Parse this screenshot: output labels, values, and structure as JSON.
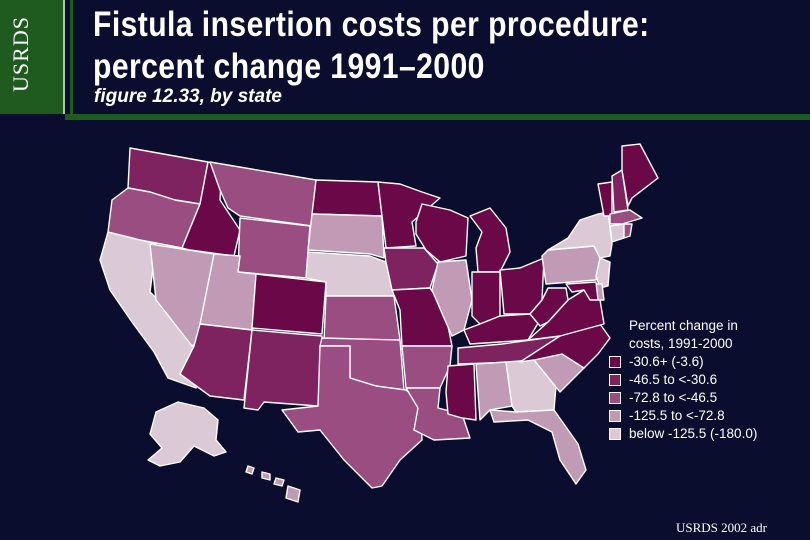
{
  "brand": {
    "label": "USRDS"
  },
  "header": {
    "title_line1": "Fistula insertion costs per procedure:",
    "title_line2": "percent change 1991–2000",
    "subtitle": "figure 12.33, by state"
  },
  "legend": {
    "title_line1": "Percent change in",
    "title_line2": "costs, 1991-2000",
    "classes": [
      {
        "label": "-30.6+ (-3.6)",
        "color": "#6b0848"
      },
      {
        "label": "-46.5 to <-30.6",
        "color": "#7e2260"
      },
      {
        "label": "-72.8 to <-46.5",
        "color": "#9a4d80"
      },
      {
        "label": "-125.5 to <-72.8",
        "color": "#c19ab5"
      },
      {
        "label": "below -125.5 (-180.0)",
        "color": "#dcc9d6"
      }
    ]
  },
  "map": {
    "states": [
      {
        "name": "WA",
        "class": 1
      },
      {
        "name": "OR",
        "class": 2
      },
      {
        "name": "CA",
        "class": 4
      },
      {
        "name": "ID",
        "class": 0
      },
      {
        "name": "NV",
        "class": 3
      },
      {
        "name": "MT",
        "class": 2
      },
      {
        "name": "WY",
        "class": 2
      },
      {
        "name": "UT",
        "class": 3
      },
      {
        "name": "AZ",
        "class": 1
      },
      {
        "name": "CO",
        "class": 0
      },
      {
        "name": "NM",
        "class": 1
      },
      {
        "name": "ND",
        "class": 0
      },
      {
        "name": "SD",
        "class": 3
      },
      {
        "name": "NE",
        "class": 4
      },
      {
        "name": "KS",
        "class": 2
      },
      {
        "name": "OK",
        "class": 2
      },
      {
        "name": "TX",
        "class": 2
      },
      {
        "name": "MN",
        "class": 0
      },
      {
        "name": "IA",
        "class": 1
      },
      {
        "name": "MO",
        "class": 0
      },
      {
        "name": "AR",
        "class": 2
      },
      {
        "name": "LA",
        "class": 2
      },
      {
        "name": "WI",
        "class": 0
      },
      {
        "name": "IL",
        "class": 3
      },
      {
        "name": "MI",
        "class": 0
      },
      {
        "name": "IN",
        "class": 0
      },
      {
        "name": "OH",
        "class": 0
      },
      {
        "name": "KY",
        "class": 0
      },
      {
        "name": "TN",
        "class": 1
      },
      {
        "name": "MS",
        "class": 0
      },
      {
        "name": "AL",
        "class": 3
      },
      {
        "name": "GA",
        "class": 4
      },
      {
        "name": "FL",
        "class": 3
      },
      {
        "name": "SC",
        "class": 3
      },
      {
        "name": "NC",
        "class": 0
      },
      {
        "name": "VA",
        "class": 0
      },
      {
        "name": "WV",
        "class": 0
      },
      {
        "name": "PA",
        "class": 3
      },
      {
        "name": "NY",
        "class": 4
      },
      {
        "name": "NJ",
        "class": 4
      },
      {
        "name": "DE",
        "class": 3
      },
      {
        "name": "MD",
        "class": 0
      },
      {
        "name": "VT",
        "class": 0
      },
      {
        "name": "NH",
        "class": 1
      },
      {
        "name": "ME",
        "class": 0
      },
      {
        "name": "MA",
        "class": 2
      },
      {
        "name": "CT",
        "class": 4
      },
      {
        "name": "RI",
        "class": 2
      },
      {
        "name": "AK",
        "class": 4
      },
      {
        "name": "HI",
        "class": 3
      }
    ]
  },
  "footer": {
    "credit": "USRDS 2002 adr"
  }
}
